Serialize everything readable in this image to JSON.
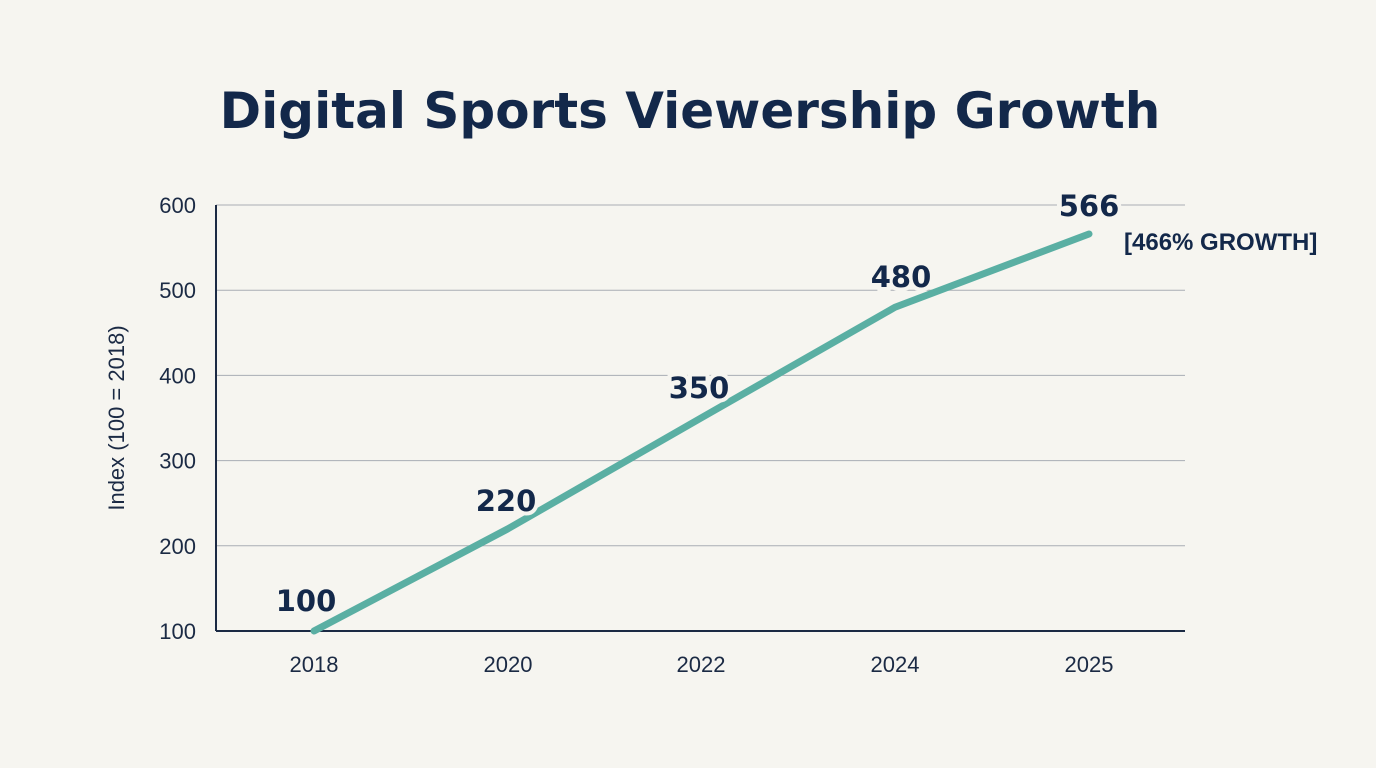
{
  "chart_data": {
    "type": "line",
    "title": "Digital Sports Viewership Growth",
    "xlabel": "",
    "ylabel": "Index (100 = 2018)",
    "categories": [
      "2018",
      "2020",
      "2022",
      "2024",
      "2025"
    ],
    "values": [
      100,
      220,
      350,
      480,
      566
    ],
    "data_labels": [
      "100",
      "220",
      "350",
      "480",
      "566"
    ],
    "yticks": [
      100,
      200,
      300,
      400,
      500,
      600
    ],
    "ylim": [
      100,
      600
    ],
    "grid": true,
    "line_color": "#5aafa3",
    "annotation": "[466% GROWTH]"
  }
}
